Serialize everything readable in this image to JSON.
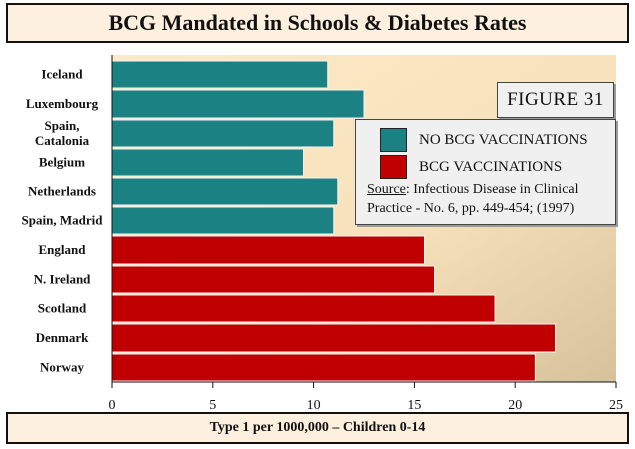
{
  "chart_data": {
    "type": "bar",
    "orientation": "horizontal",
    "title": "BCG Mandated in Schools & Diabetes Rates",
    "xlabel": "Type 1 per 1000,000 – Children 0-14",
    "ylabel": "",
    "xlim": [
      0,
      25
    ],
    "x_ticks": [
      "0",
      "5",
      "10",
      "15",
      "20",
      "25"
    ],
    "categories": [
      "Iceland",
      "Luxembourg",
      "Spain,\nCatalonia",
      "Belgium",
      "Netherlands",
      "Spain, Madrid",
      "England",
      "N. Ireland",
      "Scotland",
      "Denmark",
      "Norway"
    ],
    "values": [
      10.7,
      12.5,
      11.0,
      9.5,
      11.2,
      11.0,
      15.5,
      16.0,
      19.0,
      22.0,
      21.0
    ],
    "groups": [
      "no_bcg",
      "no_bcg",
      "no_bcg",
      "no_bcg",
      "no_bcg",
      "no_bcg",
      "bcg",
      "bcg",
      "bcg",
      "bcg",
      "bcg"
    ],
    "series": [
      {
        "name": "NO BCG VACCINATIONS",
        "key": "no_bcg",
        "color": "#1b8183"
      },
      {
        "name": "BCG VACCINATIONS",
        "key": "bcg",
        "color": "#c00000"
      }
    ],
    "grid": false,
    "legend_position": "top-right"
  },
  "figure_label": "FIGURE 31",
  "source": {
    "label": "Source",
    "text": ": Infectious Disease in Clinical Practice - No. 6, pp. 449-454; (1997)"
  },
  "colors": {
    "plot_background_start": "#fbe3bf",
    "plot_background_end": "#d9c6a0",
    "panel_background": "#fdf0df"
  }
}
